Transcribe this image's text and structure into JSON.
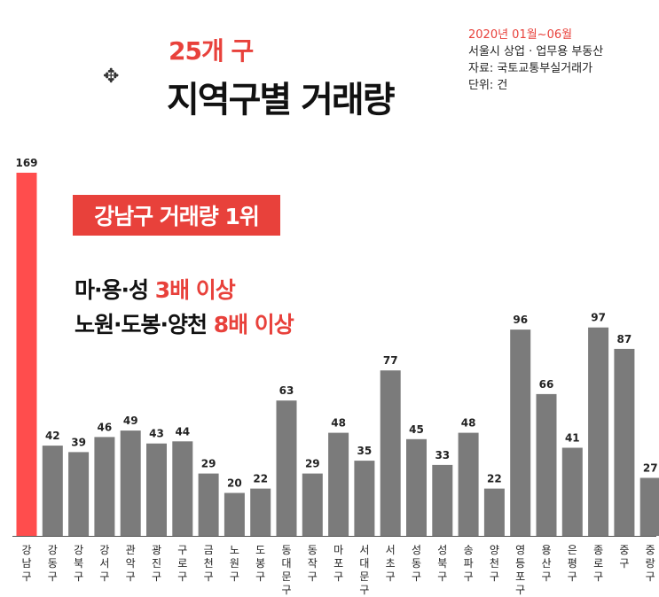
{
  "header": {
    "title_red": "25개 구",
    "title_main": "지역구별 거래량"
  },
  "meta": {
    "period": "2020년 01월~06월",
    "subject": "서울시 상업 · 업무용 부동산",
    "source": "자료: 국토교통부실거래가",
    "unit": "단위: 건"
  },
  "banner": "강남구 거래량 1위",
  "notes": {
    "line1_black": "마·용·성 ",
    "line1_red": "3배 이상",
    "line2_black": "노원·도봉·양천 ",
    "line2_red": "8배 이상"
  },
  "chart_data": {
    "type": "bar",
    "title": "지역구별 거래량",
    "categories": [
      "강남구",
      "강동구",
      "강북구",
      "강서구",
      "관악구",
      "광진구",
      "구로구",
      "금천구",
      "노원구",
      "도봉구",
      "동대문구",
      "동작구",
      "마포구",
      "서대문구",
      "서초구",
      "성동구",
      "성북구",
      "송파구",
      "양천구",
      "영등포구",
      "용산구",
      "은평구",
      "종로구",
      "중구",
      "중랑구"
    ],
    "values": [
      169,
      42,
      39,
      46,
      49,
      43,
      44,
      29,
      20,
      22,
      63,
      29,
      48,
      35,
      77,
      45,
      33,
      48,
      22,
      96,
      66,
      41,
      97,
      87,
      27
    ],
    "highlight_index": 0,
    "colors": {
      "highlight": "#ff4d4d",
      "bar": "#7b7b7b"
    },
    "ylim": [
      0,
      169
    ],
    "grid": false,
    "legend": "none"
  }
}
